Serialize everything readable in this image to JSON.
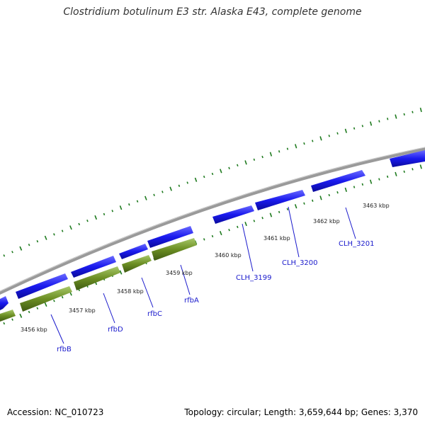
{
  "title": "Clostridium botulinum E3 str. Alaska E43, complete genome",
  "footer": {
    "accession": "Accession: NC_010723",
    "summary": "Topology: circular; Length: 3,659,644 bp; Genes: 3,370"
  },
  "colors": {
    "forward_gene": "#1a1aee",
    "reverse_gene": "#6b8e23",
    "backbone": "#8a8a8a",
    "gc_ticks": "#1e7a1e",
    "label": "#1a1acc"
  },
  "scale_labels": [
    "3456 kbp",
    "3457 kbp",
    "3458 kbp",
    "3459 kbp",
    "3460 kbp",
    "3461 kbp",
    "3462 kbp",
    "3463 kbp"
  ],
  "gene_labels": [
    "rfbB",
    "rfbD",
    "rfbC",
    "rfbA",
    "CLH_3199",
    "CLH_3200",
    "CLH_3201"
  ]
}
